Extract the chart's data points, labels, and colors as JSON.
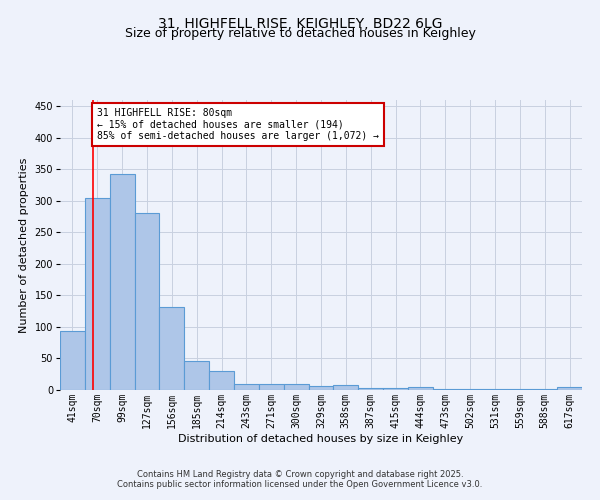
{
  "title1": "31, HIGHFELL RISE, KEIGHLEY, BD22 6LG",
  "title2": "Size of property relative to detached houses in Keighley",
  "xlabel": "Distribution of detached houses by size in Keighley",
  "ylabel": "Number of detached properties",
  "categories": [
    "41sqm",
    "70sqm",
    "99sqm",
    "127sqm",
    "156sqm",
    "185sqm",
    "214sqm",
    "243sqm",
    "271sqm",
    "300sqm",
    "329sqm",
    "358sqm",
    "387sqm",
    "415sqm",
    "444sqm",
    "473sqm",
    "502sqm",
    "531sqm",
    "559sqm",
    "588sqm",
    "617sqm"
  ],
  "values": [
    93,
    305,
    343,
    280,
    131,
    46,
    30,
    9,
    9,
    10,
    6,
    8,
    3,
    3,
    4,
    1,
    1,
    2,
    1,
    1,
    4
  ],
  "bar_color": "#aec6e8",
  "bar_edge_color": "#5b9bd5",
  "bar_edge_width": 0.8,
  "annotation_text": "31 HIGHFELL RISE: 80sqm\n← 15% of detached houses are smaller (194)\n85% of semi-detached houses are larger (1,072) →",
  "annotation_box_color": "#ffffff",
  "annotation_box_edge_color": "#cc0000",
  "ylim": [
    0,
    460
  ],
  "yticks": [
    0,
    50,
    100,
    150,
    200,
    250,
    300,
    350,
    400,
    450
  ],
  "grid_color": "#c8d0e0",
  "background_color": "#eef2fb",
  "title_fontsize": 10,
  "subtitle_fontsize": 9,
  "axis_label_fontsize": 8,
  "tick_fontsize": 7,
  "annot_fontsize": 7,
  "footer1": "Contains HM Land Registry data © Crown copyright and database right 2025.",
  "footer2": "Contains public sector information licensed under the Open Government Licence v3.0.",
  "footer_fontsize": 6
}
